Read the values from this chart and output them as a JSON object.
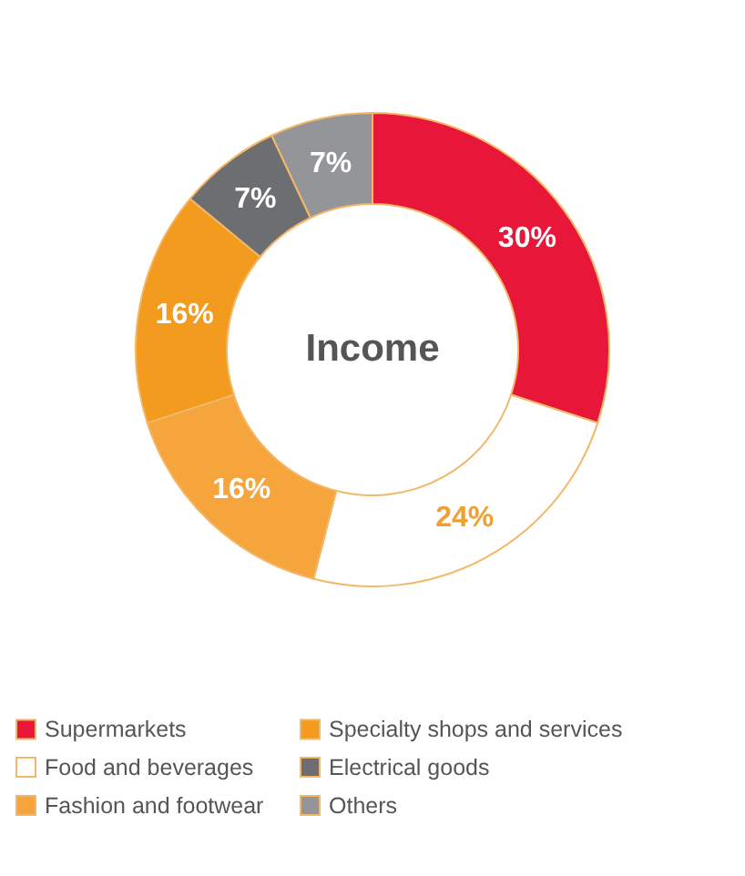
{
  "chart_data": {
    "type": "donut",
    "title": "Income",
    "categories": [
      "Supermarkets",
      "Food and beverages",
      "Fashion and footwear",
      "Specialty shops and services",
      "Electrical goods",
      "Others"
    ],
    "values": [
      30,
      24,
      16,
      16,
      7,
      7
    ],
    "colors": [
      "#e8173a",
      "#ffffff",
      "#f5a53c",
      "#f29b1f",
      "#6d6e71",
      "#949598"
    ],
    "value_labels": [
      "30%",
      "24%",
      "16%",
      "16%",
      "7%",
      "7%"
    ],
    "legend": "bottom"
  }
}
